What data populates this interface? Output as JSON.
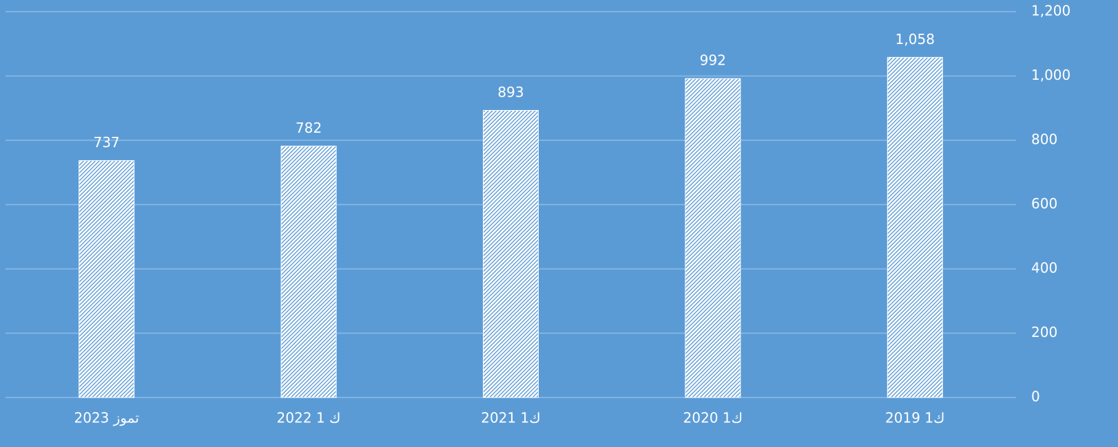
{
  "chart_data": {
    "type": "bar",
    "categories": [
      "تموز 2023",
      "ك 1 2022",
      "ك1 2021",
      "ك1 2020",
      "ك1 2019"
    ],
    "values": [
      737,
      782,
      893,
      992,
      1058
    ],
    "value_labels": [
      "737",
      "782",
      "893",
      "992",
      "1,058"
    ],
    "color": "#ffffff",
    "ylim": [
      0,
      1200
    ],
    "yticks": [
      0,
      200,
      400,
      600,
      800,
      {
        "value": 1000,
        "label": "1,000"
      },
      {
        "value": 1200,
        "label": "1,200"
      }
    ],
    "grid": true
  }
}
